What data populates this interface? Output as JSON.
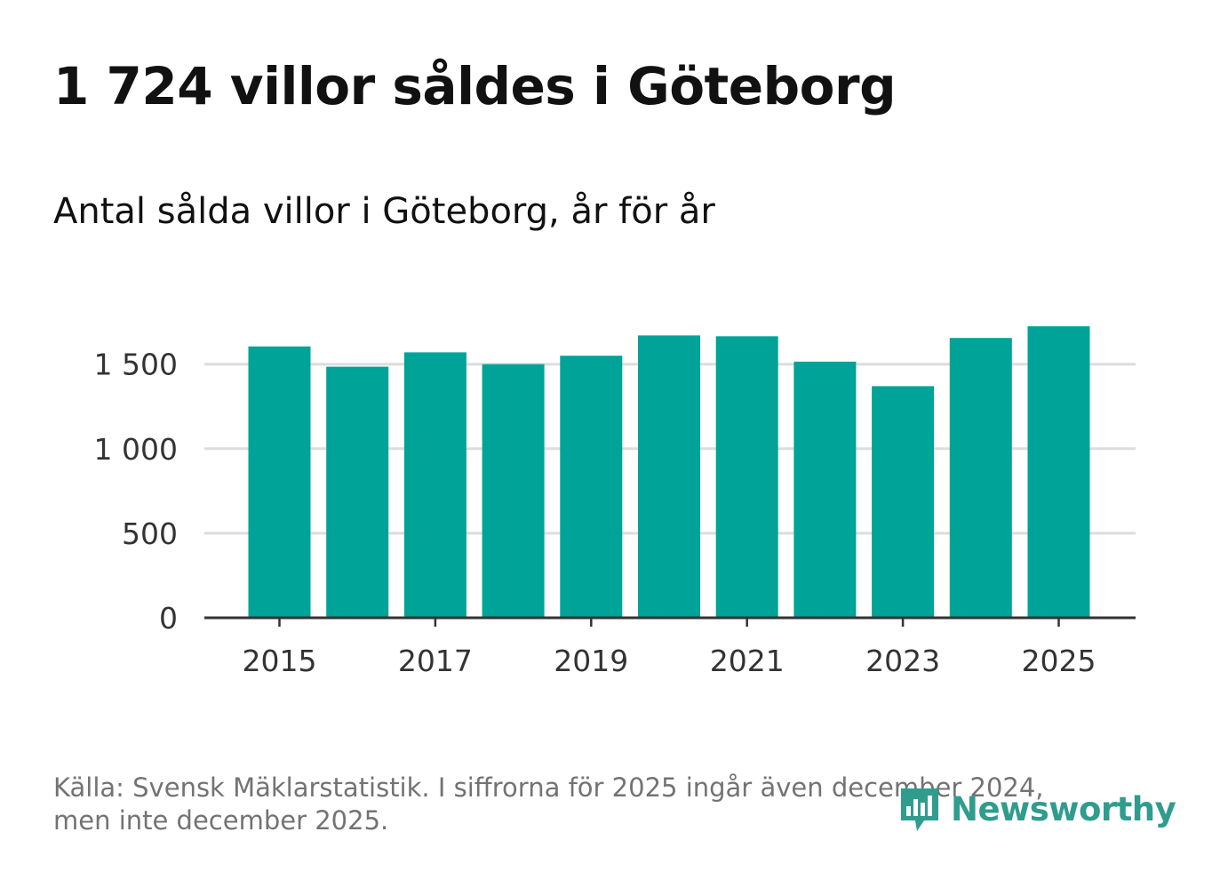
{
  "title": "1 724 villor såldes i Göteborg",
  "subtitle": "Antal sålda villor i Göteborg, år för år",
  "source_line_1": "Källa: Svensk Mäklarstatistik. I siffrorna för 2025 ingår även december 2024,",
  "source_line_2": "men inte december 2025.",
  "logo": {
    "icon": "newsworthy-logo-icon",
    "text": "Newsworthy"
  },
  "colors": {
    "bar": "#00a398",
    "grid": "#dddddd",
    "axis": "#333333",
    "logo": "#2f9c8e"
  },
  "chart_data": {
    "type": "bar",
    "title": "Antal sålda villor i Göteborg, år för år",
    "xlabel": "",
    "ylabel": "",
    "categories": [
      "2015",
      "2016",
      "2017",
      "2018",
      "2019",
      "2020",
      "2021",
      "2022",
      "2023",
      "2024",
      "2025"
    ],
    "values": [
      1605,
      1485,
      1570,
      1500,
      1550,
      1670,
      1665,
      1515,
      1370,
      1655,
      1724
    ],
    "ylim": [
      0,
      1800
    ],
    "yticks": [
      0,
      500,
      1000,
      1500
    ],
    "ytick_labels": [
      "0",
      "500",
      "1 000",
      "1 500"
    ],
    "xtick_labels": [
      "2015",
      "2017",
      "2019",
      "2021",
      "2023",
      "2025"
    ],
    "grid": true
  }
}
